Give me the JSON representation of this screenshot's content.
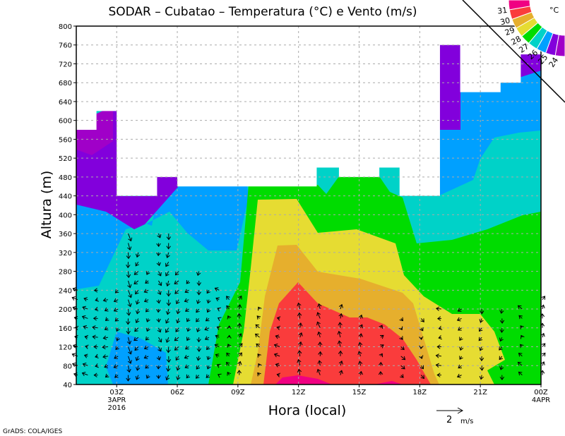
{
  "chart_data": {
    "type": "heatmap",
    "title": "SODAR – Cubatao – Temperatura (°C) e Vento (m/s)",
    "xlabel": "Hora (local)",
    "ylabel": "Altura (m)",
    "xlim_hours": [
      1,
      24
    ],
    "ylim": [
      40,
      800
    ],
    "yticks": [
      40,
      80,
      120,
      160,
      200,
      240,
      280,
      320,
      360,
      400,
      440,
      480,
      520,
      560,
      600,
      640,
      680,
      720,
      760,
      800
    ],
    "xticks": [
      {
        "hour": 3,
        "label": "03Z",
        "sub1": "3APR",
        "sub2": "2016"
      },
      {
        "hour": 6,
        "label": "06Z"
      },
      {
        "hour": 9,
        "label": "09Z"
      },
      {
        "hour": 12,
        "label": "12Z"
      },
      {
        "hour": 15,
        "label": "15Z"
      },
      {
        "hour": 18,
        "label": "18Z"
      },
      {
        "hour": 21,
        "label": "21Z"
      },
      {
        "hour": 24,
        "label": "00Z",
        "sub1": "4APR"
      }
    ],
    "grid": true,
    "colorbar": {
      "unit": "°C",
      "levels": [
        "24",
        "25",
        "26",
        "27",
        "28",
        "29",
        "30",
        "31"
      ],
      "colors": [
        "#a000c8",
        "#8200dc",
        "#00a0ff",
        "#00d2c8",
        "#00dc00",
        "#e6dc32",
        "#e6af2d",
        "#fa3c3c",
        "#f00082"
      ]
    },
    "data_ceiling_m": [
      {
        "from": 1,
        "to": 2,
        "alt": 580
      },
      {
        "from": 2,
        "to": 3,
        "alt": 620
      },
      {
        "from": 3,
        "to": 5,
        "alt": 440
      },
      {
        "from": 5,
        "to": 6,
        "alt": 480
      },
      {
        "from": 6,
        "to": 12.9,
        "alt": 460
      },
      {
        "from": 12.9,
        "to": 14,
        "alt": 500
      },
      {
        "from": 14,
        "to": 16,
        "alt": 480
      },
      {
        "from": 16,
        "to": 17,
        "alt": 500
      },
      {
        "from": 17,
        "to": 19,
        "alt": 440
      },
      {
        "from": 19,
        "to": 20,
        "alt": 760
      },
      {
        "from": 20,
        "to": 22,
        "alt": 660
      },
      {
        "from": 22,
        "to": 23,
        "alt": 680
      },
      {
        "from": 23,
        "to": 24,
        "alt": 740
      }
    ],
    "wind_reference": {
      "value": "2",
      "unit": "m/s"
    },
    "wind_columns": [
      {
        "hour": 1.0,
        "u": -0.3,
        "v": 0.1,
        "top": 240
      },
      {
        "hour": 1.5,
        "u": -0.3,
        "v": 0.1,
        "top": 220
      },
      {
        "hour": 2.0,
        "u": -0.3,
        "v": 0.0,
        "top": 240
      },
      {
        "hour": 2.5,
        "u": -0.3,
        "v": -0.1,
        "top": 220
      },
      {
        "hour": 3.0,
        "u": -0.2,
        "v": -0.2,
        "top": 240
      },
      {
        "hour": 3.5,
        "u": 0.1,
        "v": -0.5,
        "top": 360
      },
      {
        "hour": 4.0,
        "u": -0.2,
        "v": -0.3,
        "top": 320
      },
      {
        "hour": 4.5,
        "u": -0.2,
        "v": -0.2,
        "top": 280
      },
      {
        "hour": 5.0,
        "u": 0.1,
        "v": -0.3,
        "top": 360
      },
      {
        "hour": 5.5,
        "u": -0.1,
        "v": -0.4,
        "top": 360
      },
      {
        "hour": 6.0,
        "u": -0.2,
        "v": -0.3,
        "top": 280
      },
      {
        "hour": 6.5,
        "u": -0.2,
        "v": -0.2,
        "top": 260
      },
      {
        "hour": 7.0,
        "u": -0.1,
        "v": -0.3,
        "top": 280
      },
      {
        "hour": 7.5,
        "u": -0.2,
        "v": -0.2,
        "top": 240
      },
      {
        "hour": 8.0,
        "u": -0.2,
        "v": 0.1,
        "top": 240
      },
      {
        "hour": 8.5,
        "u": -0.1,
        "v": 0.2,
        "top": 220
      },
      {
        "hour": 9.0,
        "u": 0.1,
        "v": 0.3,
        "top": 220
      },
      {
        "hour": 10.0,
        "u": -0.2,
        "v": 0.2,
        "top": 200
      },
      {
        "hour": 11.0,
        "u": -0.3,
        "v": 0.1,
        "top": 180
      },
      {
        "hour": 12.0,
        "u": 0.0,
        "v": 0.4,
        "top": 200
      },
      {
        "hour": 13.0,
        "u": -0.1,
        "v": 0.4,
        "top": 200
      },
      {
        "hour": 14.0,
        "u": 0.0,
        "v": 0.4,
        "top": 200
      },
      {
        "hour": 15.0,
        "u": 0.0,
        "v": 0.3,
        "top": 180
      },
      {
        "hour": 16.0,
        "u": 0.1,
        "v": 0.2,
        "top": 160
      },
      {
        "hour": 17.0,
        "u": 0.2,
        "v": -0.2,
        "top": 180
      },
      {
        "hour": 18.0,
        "u": 0.1,
        "v": -0.2,
        "top": 180
      },
      {
        "hour": 19.0,
        "u": -0.3,
        "v": 0.0,
        "top": 200
      },
      {
        "hour": 20.0,
        "u": -0.2,
        "v": -0.2,
        "top": 200
      },
      {
        "hour": 21.0,
        "u": -0.1,
        "v": -0.3,
        "top": 200
      },
      {
        "hour": 22.0,
        "u": -0.1,
        "v": -0.3,
        "top": 200
      },
      {
        "hour": 23.0,
        "u": -0.2,
        "v": 0.2,
        "top": 200
      },
      {
        "hour": 24.0,
        "u": 0.1,
        "v": 0.3,
        "top": 220
      }
    ]
  },
  "footer": {
    "credit": "GrADS: COLA/IGES"
  }
}
